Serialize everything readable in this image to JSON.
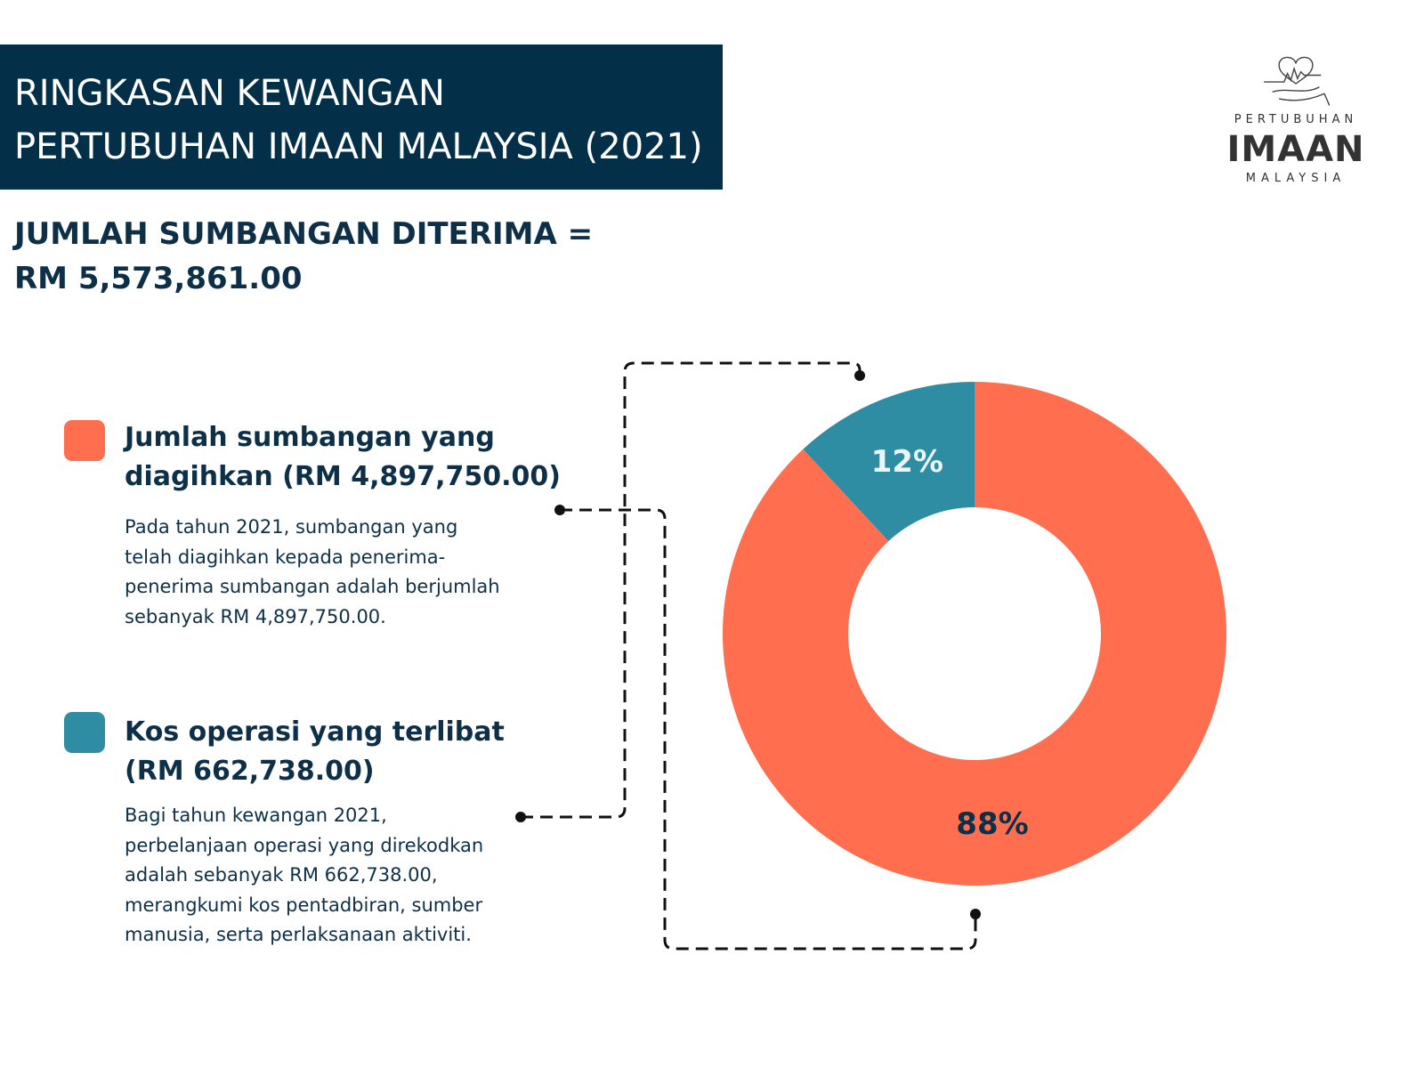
{
  "header": {
    "line1": "RINGKASAN KEWANGAN",
    "line2": "PERTUBUHAN IMAAN MALAYSIA (2021)"
  },
  "total": {
    "line1": "JUMLAH SUMBANGAN DITERIMA =",
    "line2": "RM 5,573,861.00"
  },
  "logo": {
    "top": "PERTUBUHAN",
    "main": "IMAAN",
    "bottom": "MALAYSIA"
  },
  "legend": [
    {
      "title1": "Jumlah sumbangan yang",
      "title2": "diagihkan (RM 4,897,750.00)",
      "color": "#ff6f4f",
      "desc": [
        "Pada tahun 2021, sumbangan yang",
        "telah diagihkan kepada penerima-",
        "penerima sumbangan adalah berjumlah",
        "sebanyak RM 4,897,750.00."
      ]
    },
    {
      "title1": "Kos operasi yang terlibat",
      "title2": "(RM 662,738.00)",
      "color": "#2e8da3",
      "desc": [
        "Bagi tahun kewangan 2021,",
        "perbelanjaan operasi yang direkodkan",
        "adalah sebanyak RM 662,738.00,",
        "merangkumi kos pentadbiran, sumber",
        "manusia, serta perlaksanaan aktiviti."
      ]
    }
  ],
  "chart_data": {
    "type": "pie",
    "donut": true,
    "categories": [
      "Jumlah sumbangan yang diagihkan",
      "Kos operasi yang terlibat"
    ],
    "values": [
      4897750,
      662738
    ],
    "labels": [
      "88%",
      "12%"
    ],
    "colors": [
      "#ff6f4f",
      "#2e8da3"
    ]
  }
}
